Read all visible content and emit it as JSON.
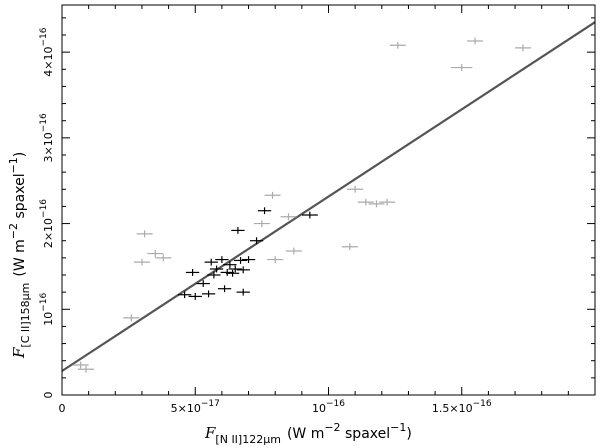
{
  "chart_data": {
    "type": "scatter",
    "title": "",
    "xlabel": {
      "symbol": "F",
      "subscript": "[N II]122μm",
      "units_parts": [
        "(W m",
        "−2",
        " spaxel",
        "−1",
        ")"
      ]
    },
    "ylabel": {
      "symbol": "F",
      "subscript": "[C II]158μm",
      "units_parts": [
        "(W m",
        "−2",
        " spaxel",
        "−1",
        ")"
      ]
    },
    "xlim": [
      0,
      2e-16
    ],
    "ylim": [
      0,
      4.55e-16
    ],
    "x_ticks": [
      {
        "value": 0,
        "mant": "0",
        "exp": ""
      },
      {
        "value": 5e-17,
        "mant": "5×10",
        "exp": "−17"
      },
      {
        "value": 1e-16,
        "mant": "10",
        "exp": "−16"
      },
      {
        "value": 1.5e-16,
        "mant": "1.5×10",
        "exp": "−16"
      }
    ],
    "y_ticks": [
      {
        "value": 0,
        "mant": "0",
        "exp": ""
      },
      {
        "value": 1e-16,
        "mant": "10",
        "exp": "−16"
      },
      {
        "value": 2e-16,
        "mant": "2×10",
        "exp": "−16"
      },
      {
        "value": 3e-16,
        "mant": "3×10",
        "exp": "−16"
      },
      {
        "value": 4e-16,
        "mant": "4×10",
        "exp": "−16"
      }
    ],
    "grid": false,
    "fit_line": {
      "x": [
        0,
        2e-16
      ],
      "y": [
        2.8e-17,
        4.35e-16
      ],
      "color": "#555555"
    },
    "series": [
      {
        "color": "#aaaaaa",
        "points": [
          {
            "x": 7e-18,
            "y": 3.5e-17,
            "xerr": 3e-18,
            "yerr": 4e-18
          },
          {
            "x": 9e-18,
            "y": 3e-17,
            "xerr": 3e-18,
            "yerr": 4e-18
          },
          {
            "x": 2.6e-17,
            "y": 9e-17,
            "xerr": 3e-18,
            "yerr": 4e-18
          },
          {
            "x": 3e-17,
            "y": 1.55e-16,
            "xerr": 3e-18,
            "yerr": 4e-18
          },
          {
            "x": 3.1e-17,
            "y": 1.88e-16,
            "xerr": 3e-18,
            "yerr": 4e-18
          },
          {
            "x": 3.5e-17,
            "y": 1.65e-16,
            "xerr": 3e-18,
            "yerr": 4e-18
          },
          {
            "x": 3.8e-17,
            "y": 1.6e-16,
            "xerr": 3e-18,
            "yerr": 4e-18
          },
          {
            "x": 7.5e-17,
            "y": 2e-16,
            "xerr": 3e-18,
            "yerr": 4e-18
          },
          {
            "x": 7.9e-17,
            "y": 2.33e-16,
            "xerr": 3e-18,
            "yerr": 4e-18
          },
          {
            "x": 8e-17,
            "y": 1.58e-16,
            "xerr": 3e-18,
            "yerr": 4e-18
          },
          {
            "x": 8.5e-17,
            "y": 2.08e-16,
            "xerr": 3e-18,
            "yerr": 4e-18
          },
          {
            "x": 8.7e-17,
            "y": 1.68e-16,
            "xerr": 3e-18,
            "yerr": 4e-18
          },
          {
            "x": 1.08e-16,
            "y": 1.73e-16,
            "xerr": 3e-18,
            "yerr": 4e-18
          },
          {
            "x": 1.1e-16,
            "y": 2.4e-16,
            "xerr": 3e-18,
            "yerr": 4e-18
          },
          {
            "x": 1.14e-16,
            "y": 2.25e-16,
            "xerr": 3e-18,
            "yerr": 4e-18
          },
          {
            "x": 1.18e-16,
            "y": 2.23e-16,
            "xerr": 3e-18,
            "yerr": 4e-18
          },
          {
            "x": 1.22e-16,
            "y": 2.25e-16,
            "xerr": 3e-18,
            "yerr": 4e-18
          },
          {
            "x": 1.26e-16,
            "y": 4.08e-16,
            "xerr": 3e-18,
            "yerr": 4e-18
          },
          {
            "x": 1.5e-16,
            "y": 3.82e-16,
            "xerr": 4e-18,
            "yerr": 4e-18
          },
          {
            "x": 1.55e-16,
            "y": 4.13e-16,
            "xerr": 3e-18,
            "yerr": 4e-18
          },
          {
            "x": 1.73e-16,
            "y": 4.05e-16,
            "xerr": 3e-18,
            "yerr": 4e-18
          }
        ]
      },
      {
        "color": "#000000",
        "points": [
          {
            "x": 4.6e-17,
            "y": 1.17e-16,
            "xerr": 2.5e-18,
            "yerr": 4e-18
          },
          {
            "x": 5e-17,
            "y": 1.15e-16,
            "xerr": 2.5e-18,
            "yerr": 4e-18
          },
          {
            "x": 4.9e-17,
            "y": 1.43e-16,
            "xerr": 2.5e-18,
            "yerr": 4e-18
          },
          {
            "x": 5.3e-17,
            "y": 1.3e-16,
            "xerr": 2.5e-18,
            "yerr": 4e-18
          },
          {
            "x": 5.5e-17,
            "y": 1.18e-16,
            "xerr": 2.5e-18,
            "yerr": 4e-18
          },
          {
            "x": 5.6e-17,
            "y": 1.55e-16,
            "xerr": 2.5e-18,
            "yerr": 4e-18
          },
          {
            "x": 5.7e-17,
            "y": 1.4e-16,
            "xerr": 2.5e-18,
            "yerr": 4e-18
          },
          {
            "x": 5.8e-17,
            "y": 1.47e-16,
            "xerr": 2.5e-18,
            "yerr": 4e-18
          },
          {
            "x": 6e-17,
            "y": 1.58e-16,
            "xerr": 2.5e-18,
            "yerr": 4e-18
          },
          {
            "x": 6.1e-17,
            "y": 1.24e-16,
            "xerr": 2.5e-18,
            "yerr": 4e-18
          },
          {
            "x": 6.2e-17,
            "y": 1.43e-16,
            "xerr": 2.5e-18,
            "yerr": 4e-18
          },
          {
            "x": 6.3e-17,
            "y": 1.52e-16,
            "xerr": 2.5e-18,
            "yerr": 4e-18
          },
          {
            "x": 6.4e-17,
            "y": 1.42e-16,
            "xerr": 2.5e-18,
            "yerr": 4e-18
          },
          {
            "x": 6.5e-17,
            "y": 1.47e-16,
            "xerr": 2.5e-18,
            "yerr": 4e-18
          },
          {
            "x": 6.6e-17,
            "y": 1.92e-16,
            "xerr": 2.5e-18,
            "yerr": 4e-18
          },
          {
            "x": 6.7e-17,
            "y": 1.57e-16,
            "xerr": 2.5e-18,
            "yerr": 4e-18
          },
          {
            "x": 6.8e-17,
            "y": 1.46e-16,
            "xerr": 2.5e-18,
            "yerr": 4e-18
          },
          {
            "x": 6.8e-17,
            "y": 1.2e-16,
            "xerr": 2.5e-18,
            "yerr": 4e-18
          },
          {
            "x": 7e-17,
            "y": 1.58e-16,
            "xerr": 2.5e-18,
            "yerr": 4e-18
          },
          {
            "x": 7.3e-17,
            "y": 1.8e-16,
            "xerr": 2.5e-18,
            "yerr": 4e-18
          },
          {
            "x": 7.6e-17,
            "y": 2.15e-16,
            "xerr": 2.5e-18,
            "yerr": 4e-18
          },
          {
            "x": 9.3e-17,
            "y": 2.1e-16,
            "xerr": 3e-18,
            "yerr": 4e-18
          }
        ]
      }
    ]
  }
}
